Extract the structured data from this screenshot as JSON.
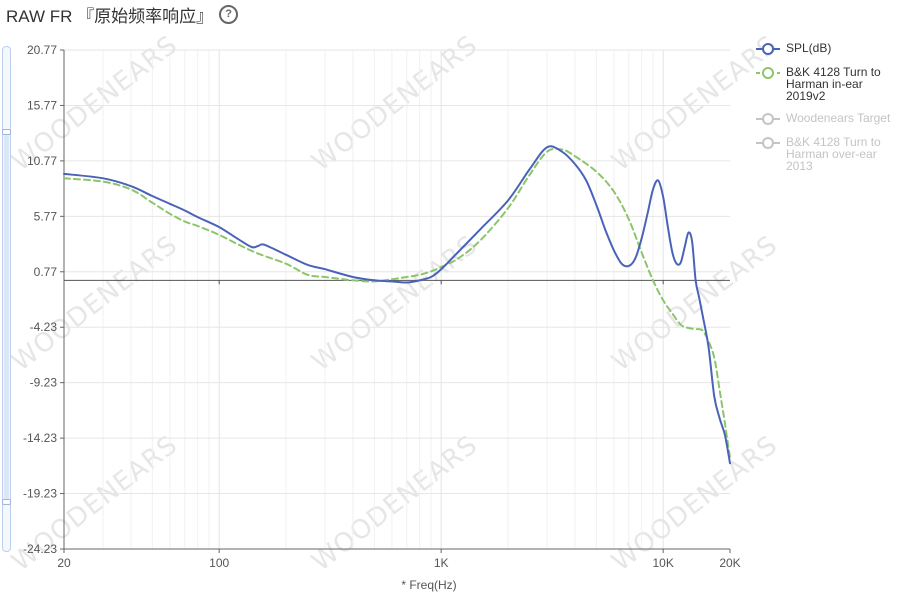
{
  "header": {
    "title": "RAW FR 『原始频率响应』",
    "help_glyph": "?"
  },
  "watermark": "WOODENEARS",
  "chart_data": {
    "type": "line",
    "xlabel": "* Freq(Hz)",
    "ylabel": "",
    "xscale": "log",
    "xlim": [
      20,
      20000
    ],
    "ylim": [
      -24.23,
      20.77
    ],
    "x_ticks": [
      {
        "value": 20,
        "label": "20"
      },
      {
        "value": 100,
        "label": "100"
      },
      {
        "value": 1000,
        "label": "1K"
      },
      {
        "value": 10000,
        "label": "10K"
      },
      {
        "value": 20000,
        "label": "20K"
      }
    ],
    "y_ticks": [
      20.77,
      15.77,
      10.77,
      5.77,
      0.77,
      -4.23,
      -9.23,
      -14.23,
      -19.23,
      -24.23
    ],
    "reference_line": 0,
    "grid": true,
    "legend_position": "right",
    "series": [
      {
        "name": "SPL(dB)",
        "color": "#4a63b8",
        "style": "solid",
        "visible": true,
        "points": [
          [
            20,
            9.6
          ],
          [
            30,
            9.2
          ],
          [
            40,
            8.5
          ],
          [
            50,
            7.6
          ],
          [
            60,
            6.9
          ],
          [
            70,
            6.3
          ],
          [
            80,
            5.7
          ],
          [
            100,
            4.8
          ],
          [
            120,
            3.8
          ],
          [
            140,
            3.0
          ],
          [
            150,
            3.1
          ],
          [
            160,
            3.2
          ],
          [
            200,
            2.3
          ],
          [
            250,
            1.4
          ],
          [
            300,
            1.0
          ],
          [
            400,
            0.3
          ],
          [
            500,
            0.0
          ],
          [
            600,
            -0.1
          ],
          [
            700,
            -0.2
          ],
          [
            800,
            0.0
          ],
          [
            900,
            0.3
          ],
          [
            1000,
            1.0
          ],
          [
            1200,
            2.6
          ],
          [
            1500,
            4.6
          ],
          [
            2000,
            7.2
          ],
          [
            2500,
            10.0
          ],
          [
            3000,
            12.0
          ],
          [
            3500,
            11.6
          ],
          [
            4000,
            10.5
          ],
          [
            4500,
            9.0
          ],
          [
            5000,
            6.8
          ],
          [
            5500,
            4.5
          ],
          [
            6000,
            2.7
          ],
          [
            6500,
            1.5
          ],
          [
            7000,
            1.3
          ],
          [
            7500,
            2.0
          ],
          [
            8000,
            3.8
          ],
          [
            8500,
            6.0
          ],
          [
            9000,
            8.2
          ],
          [
            9500,
            9.0
          ],
          [
            10000,
            7.5
          ],
          [
            10500,
            4.8
          ],
          [
            11000,
            2.5
          ],
          [
            11500,
            1.5
          ],
          [
            12000,
            1.6
          ],
          [
            12500,
            3.0
          ],
          [
            13000,
            4.3
          ],
          [
            13500,
            3.5
          ],
          [
            14000,
            0.0
          ],
          [
            14500,
            -1.5
          ],
          [
            15000,
            -3.0
          ],
          [
            16000,
            -6.0
          ],
          [
            17000,
            -10.5
          ],
          [
            18000,
            -12.5
          ],
          [
            19000,
            -14.0
          ],
          [
            20000,
            -16.5
          ]
        ]
      },
      {
        "name": "B&K 4128 Turn to Harman in-ear 2019v2",
        "color": "#8cc66a",
        "style": "dashed",
        "visible": true,
        "points": [
          [
            20,
            9.2
          ],
          [
            30,
            8.9
          ],
          [
            40,
            8.2
          ],
          [
            50,
            7.0
          ],
          [
            60,
            6.0
          ],
          [
            70,
            5.3
          ],
          [
            80,
            4.9
          ],
          [
            100,
            4.1
          ],
          [
            120,
            3.3
          ],
          [
            150,
            2.4
          ],
          [
            200,
            1.5
          ],
          [
            250,
            0.5
          ],
          [
            300,
            0.3
          ],
          [
            400,
            0.0
          ],
          [
            500,
            -0.1
          ],
          [
            600,
            0.1
          ],
          [
            700,
            0.3
          ],
          [
            800,
            0.5
          ],
          [
            900,
            0.8
          ],
          [
            1000,
            1.2
          ],
          [
            1200,
            2.0
          ],
          [
            1500,
            3.6
          ],
          [
            2000,
            6.5
          ],
          [
            2500,
            9.5
          ],
          [
            3000,
            11.6
          ],
          [
            3500,
            11.8
          ],
          [
            4000,
            11.2
          ],
          [
            5000,
            9.8
          ],
          [
            6000,
            8.0
          ],
          [
            7000,
            5.5
          ],
          [
            8000,
            2.5
          ],
          [
            9000,
            0.0
          ],
          [
            10000,
            -1.8
          ],
          [
            11000,
            -3.0
          ],
          [
            12000,
            -4.0
          ],
          [
            13000,
            -4.3
          ],
          [
            14000,
            -4.4
          ],
          [
            15000,
            -4.5
          ],
          [
            16000,
            -5.5
          ],
          [
            17000,
            -7.0
          ],
          [
            18000,
            -10.0
          ],
          [
            19000,
            -13.0
          ],
          [
            20000,
            -16.0
          ]
        ]
      },
      {
        "name": "Woodenears Target",
        "color": "#c4c4c4",
        "style": "solid",
        "visible": false,
        "points": []
      },
      {
        "name": "B&K 4128 Turn to Harman over-ear 2013",
        "color": "#c4c4c4",
        "style": "solid",
        "visible": false,
        "points": []
      }
    ]
  }
}
